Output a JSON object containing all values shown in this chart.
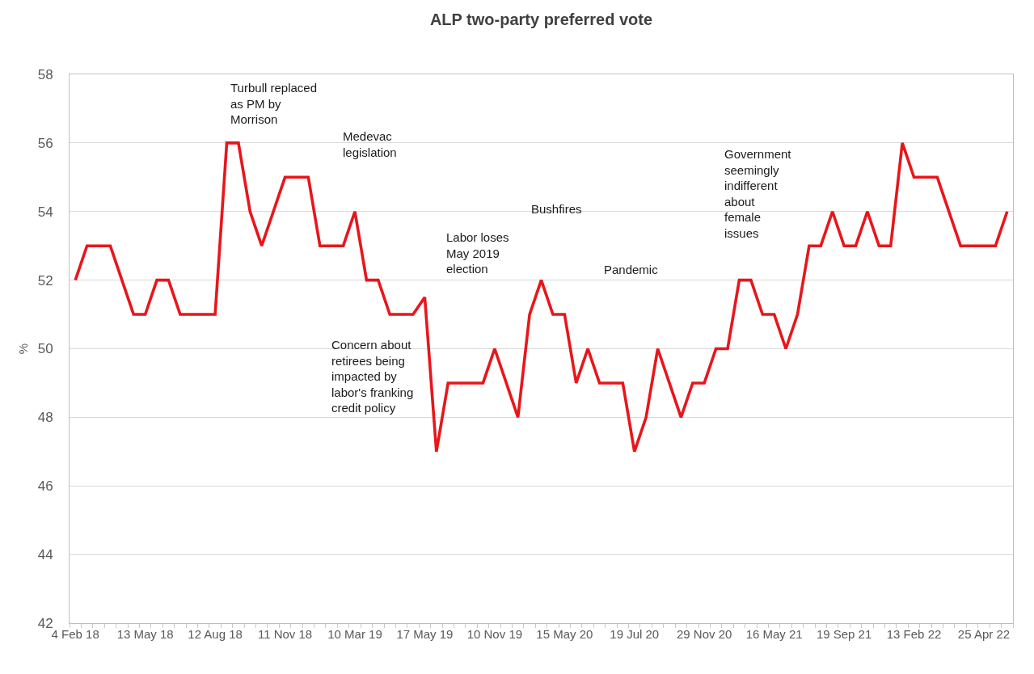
{
  "chart_data": {
    "type": "line",
    "title": "ALP two-party preferred vote",
    "ylabel": "%",
    "categories": [
      "4 Feb 18",
      null,
      null,
      null,
      null,
      null,
      "13 May 18",
      null,
      null,
      null,
      null,
      null,
      "12 Aug 18",
      null,
      null,
      null,
      null,
      null,
      "11 Nov 18",
      null,
      null,
      null,
      null,
      null,
      "10 Mar 19",
      null,
      null,
      null,
      null,
      null,
      "17 May 19",
      null,
      null,
      null,
      null,
      null,
      "10 Nov 19",
      null,
      null,
      null,
      null,
      null,
      "15 May 20",
      null,
      null,
      null,
      null,
      null,
      "19 Jul 20",
      null,
      null,
      null,
      null,
      null,
      "29 Nov 20",
      null,
      null,
      null,
      null,
      null,
      "16 May 21",
      null,
      null,
      null,
      null,
      null,
      "19 Sep 21",
      null,
      null,
      null,
      null,
      null,
      "13 Feb 22",
      null,
      null,
      null,
      null,
      null,
      "25 Apr 22",
      null,
      null
    ],
    "series": [
      {
        "color": "#e8161b",
        "values": [
          52,
          53,
          53,
          53,
          52,
          51,
          51,
          52,
          52,
          51,
          51,
          51,
          51,
          56,
          56,
          54,
          53,
          54,
          55,
          55,
          55,
          53,
          53,
          53,
          54,
          52,
          52,
          51,
          51,
          51,
          51.5,
          47,
          49,
          49,
          49,
          49,
          50,
          49,
          48,
          51,
          52,
          51,
          51,
          49,
          50,
          49,
          49,
          49,
          47,
          48,
          50,
          49,
          48,
          49,
          49,
          50,
          50,
          52,
          52,
          51,
          51,
          50,
          51,
          53,
          53,
          54,
          53,
          53,
          54,
          53,
          53,
          56,
          55,
          55,
          55,
          54,
          53,
          53,
          53,
          53,
          54
        ]
      }
    ],
    "ylim": [
      42,
      58
    ],
    "yticks": [
      42,
      44,
      46,
      48,
      50,
      52,
      54,
      56,
      58
    ],
    "grid": "y",
    "marker": "none",
    "line_style": "solid",
    "annotations": [
      "Turbull replaced as PM by Morrison",
      "Medevac legislation",
      "Concern about retirees being impacted by labor's franking credit policy",
      "Labor loses May 2019 election",
      "Bushfires",
      "Pandemic",
      "Government seemingly indifferent about female issues"
    ]
  }
}
